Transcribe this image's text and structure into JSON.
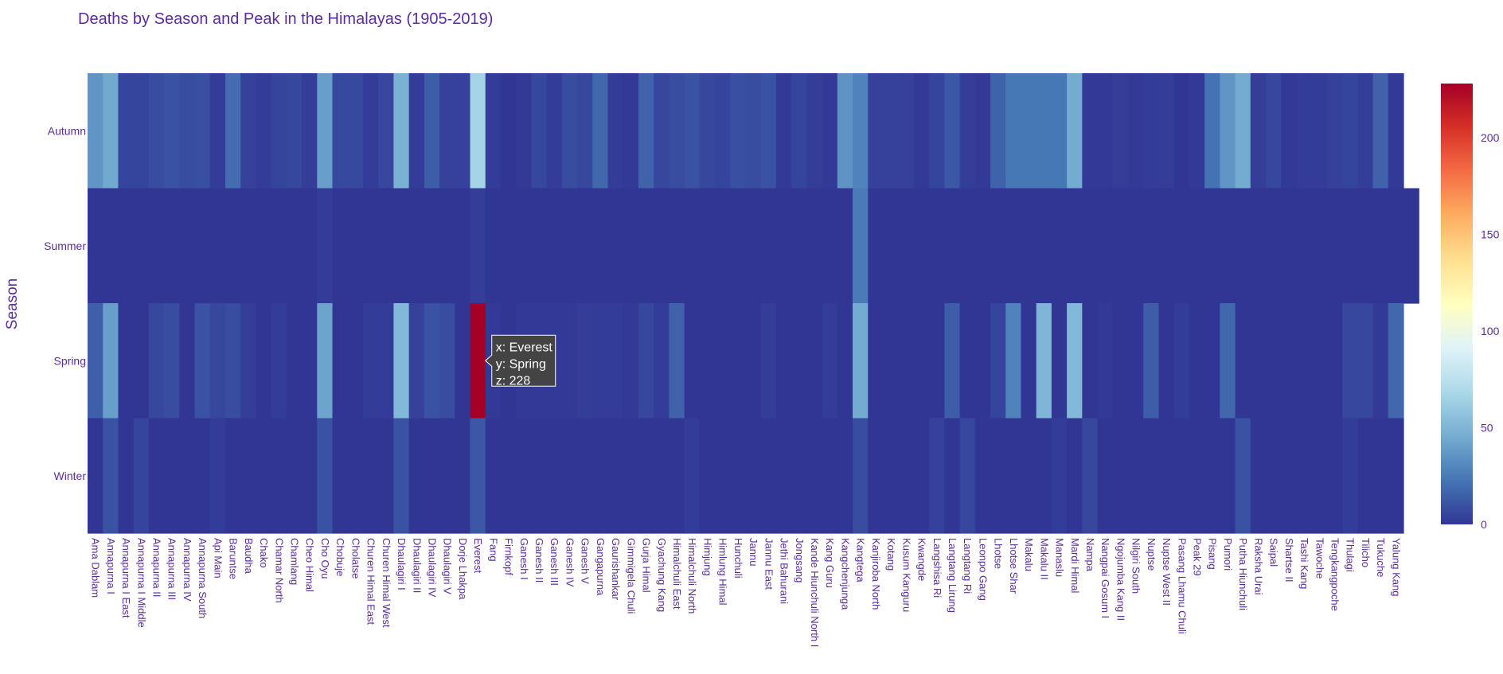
{
  "chart_data": {
    "type": "heatmap",
    "title": "Deaths by Season and Peak in the Himalayas (1905-2019)",
    "xlabel": "",
    "ylabel": "Season",
    "x": [
      "Ama Dablam",
      "Annapurna I",
      "Annapurna I East",
      "Annapurna I Middle",
      "Annapurna II",
      "Annapurna III",
      "Annapurna IV",
      "Annapurna South",
      "Api Main",
      "Baruntse",
      "Baudha",
      "Chako",
      "Chamar North",
      "Chamlang",
      "Cheo Himal",
      "Cho Oyu",
      "Chobuje",
      "Cholatse",
      "Churen Himal East",
      "Churen Himal West",
      "Dhaulagiri I",
      "Dhaulagiri II",
      "Dhaulagiri IV",
      "Dhaulagiri V",
      "Dorje Lhakpa",
      "Everest",
      "Fang",
      "Firnkopf",
      "Ganesh I",
      "Ganesh II",
      "Ganesh III",
      "Ganesh IV",
      "Ganesh V",
      "Gangapurna",
      "Gaurishankar",
      "Gimmigela Chuli",
      "Gurja Himal",
      "Gyachung Kang",
      "Himalchuli East",
      "Himalchuli North",
      "Himjung",
      "Himlung Himal",
      "Hunchuli",
      "Jannu",
      "Jannu East",
      "Jethi Bahurani",
      "Jongsang",
      "Kande Hiunchuli North I",
      "Kang Guru",
      "Kangchenjunga",
      "Kangtega",
      "Kanjiroba North",
      "Kotang",
      "Kusum Kanguru",
      "Kwangde",
      "Langshisa Ri",
      "Langtang Lirung",
      "Langtang Ri",
      "Leonpo Gang",
      "Lhotse",
      "Lhotse Shar",
      "Makalu",
      "Makalu II",
      "Manaslu",
      "Mardi Himal",
      "Nampa",
      "Nangpai Gosum I",
      "Ngojumba Kang II",
      "Nilgiri South",
      "Nuptse",
      "Nuptse West II",
      "Pasang Lhamu Chuli",
      "Peak 29",
      "Pisang",
      "Pumori",
      "Putha Hiunchuli",
      "Raksha Urai",
      "Saipal",
      "Shartse II",
      "Tashi Kang",
      "Tawoche",
      "Tengkangpoche",
      "Thulagi",
      "Tilicho",
      "Tukuche",
      "Yalung Kang"
    ],
    "y": [
      "Autumn",
      "Summer",
      "Spring",
      "Winter"
    ],
    "z": [
      [
        36,
        44,
        5,
        5,
        8,
        10,
        8,
        9,
        2,
        20,
        4,
        2,
        5,
        6,
        3,
        40,
        7,
        7,
        2,
        6,
        48,
        2,
        14,
        4,
        4,
        66,
        2,
        0,
        1,
        6,
        2,
        8,
        6,
        18,
        2,
        1,
        16,
        6,
        8,
        10,
        6,
        5,
        9,
        8,
        10,
        1,
        5,
        3,
        1,
        35,
        28,
        4,
        4,
        4,
        1,
        5,
        12,
        3,
        1,
        16,
        24,
        24,
        24,
        24,
        45,
        1,
        1,
        3,
        1,
        2,
        3,
        0,
        1,
        22,
        36,
        45,
        3,
        6,
        1,
        2,
        2,
        4,
        5,
        3,
        16,
        1
      ],
      [
        0,
        0,
        0,
        0,
        0,
        0,
        0,
        0,
        0,
        0,
        0,
        0,
        0,
        0,
        0,
        2,
        0,
        0,
        0,
        0,
        0,
        0,
        0,
        0,
        0,
        3,
        0,
        0,
        0,
        0,
        0,
        0,
        0,
        0,
        0,
        0,
        0,
        0,
        0,
        0,
        0,
        0,
        0,
        0,
        0,
        0,
        0,
        0,
        0,
        0,
        25,
        0,
        0,
        0,
        0,
        0,
        0,
        0,
        0,
        0,
        0,
        0,
        0,
        0,
        0,
        0,
        0,
        0,
        0,
        0,
        0,
        0,
        0,
        0,
        0,
        0,
        0,
        0,
        0,
        0,
        0,
        0,
        0,
        0,
        0,
        0,
        0
      ],
      [
        15,
        40,
        0,
        0,
        6,
        8,
        0,
        10,
        6,
        8,
        3,
        0,
        2,
        0,
        0,
        42,
        0,
        0,
        2,
        2,
        52,
        4,
        10,
        8,
        0,
        228,
        1,
        0,
        1,
        1,
        1,
        1,
        3,
        2,
        2,
        1,
        6,
        2,
        16,
        0,
        0,
        0,
        0,
        0,
        3,
        0,
        0,
        0,
        2,
        0,
        45,
        0,
        0,
        0,
        0,
        0,
        14,
        0,
        0,
        5,
        28,
        0,
        50,
        0,
        52,
        0,
        1,
        0,
        0,
        14,
        0,
        2,
        0,
        0,
        18,
        0,
        0,
        0,
        0,
        0,
        0,
        0,
        6,
        6,
        1,
        18
      ],
      [
        0,
        10,
        0,
        5,
        0,
        0,
        0,
        0,
        2,
        0,
        0,
        0,
        0,
        0,
        0,
        10,
        0,
        0,
        0,
        0,
        10,
        0,
        0,
        0,
        0,
        12,
        0,
        0,
        0,
        0,
        0,
        0,
        0,
        0,
        0,
        0,
        0,
        0,
        0,
        2,
        0,
        0,
        0,
        0,
        0,
        0,
        0,
        0,
        0,
        0,
        8,
        0,
        0,
        0,
        0,
        4,
        0,
        6,
        0,
        0,
        0,
        0,
        0,
        2,
        0,
        6,
        0,
        0,
        0,
        0,
        0,
        0,
        0,
        0,
        0,
        10,
        0,
        0,
        0,
        0,
        0,
        0,
        2,
        0,
        0,
        0
      ]
    ],
    "zlim": [
      0,
      228
    ],
    "colorbar": {
      "ticks": [
        0,
        50,
        100,
        150,
        200
      ]
    },
    "colorscale": "RdYlBu (reversed)",
    "hover": {
      "x": "Everest",
      "y": "Spring",
      "z": 228
    },
    "hover_labels": {
      "x": "x: ",
      "y": "y: ",
      "z": "z: "
    },
    "grid": false
  },
  "colors": {
    "text": "#5b2c9e",
    "title": "#5b2c9e",
    "background": "#ffffff",
    "tooltip_bg": "#444444",
    "tooltip_text": "#ffffff"
  }
}
